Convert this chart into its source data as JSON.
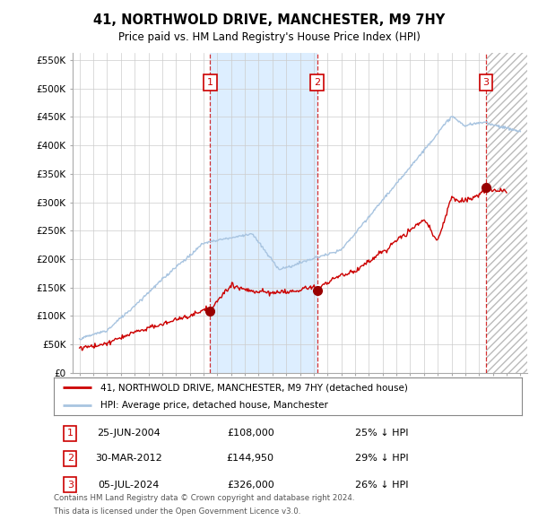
{
  "title": "41, NORTHWOLD DRIVE, MANCHESTER, M9 7HY",
  "subtitle": "Price paid vs. HM Land Registry's House Price Index (HPI)",
  "hpi_color": "#a8c4e0",
  "price_color": "#cc0000",
  "transactions": [
    {
      "num": 1,
      "date_label": "25-JUN-2004",
      "date_x": 2004.48,
      "price": 108000,
      "pct": "25% ↓ HPI"
    },
    {
      "num": 2,
      "date_label": "30-MAR-2012",
      "date_x": 2012.25,
      "price": 144950,
      "pct": "29% ↓ HPI"
    },
    {
      "num": 3,
      "date_label": "05-JUL-2024",
      "date_x": 2024.51,
      "price": 326000,
      "pct": "26% ↓ HPI"
    }
  ],
  "ylim": [
    0,
    562500
  ],
  "xlim": [
    1994.5,
    2027.5
  ],
  "yticks": [
    0,
    50000,
    100000,
    150000,
    200000,
    250000,
    300000,
    350000,
    400000,
    450000,
    500000,
    550000
  ],
  "ytick_labels": [
    "£0",
    "£50K",
    "£100K",
    "£150K",
    "£200K",
    "£250K",
    "£300K",
    "£350K",
    "£400K",
    "£450K",
    "£500K",
    "£550K"
  ],
  "xticks": [
    1995,
    1996,
    1997,
    1998,
    1999,
    2000,
    2001,
    2002,
    2003,
    2004,
    2005,
    2006,
    2007,
    2008,
    2009,
    2010,
    2011,
    2012,
    2013,
    2014,
    2015,
    2016,
    2017,
    2018,
    2019,
    2020,
    2021,
    2022,
    2023,
    2024,
    2025,
    2026,
    2027
  ],
  "legend_line1": "41, NORTHWOLD DRIVE, MANCHESTER, M9 7HY (detached house)",
  "legend_line2": "HPI: Average price, detached house, Manchester",
  "footer1": "Contains HM Land Registry data © Crown copyright and database right 2024.",
  "footer2": "This data is licensed under the Open Government Licence v3.0.",
  "shade_between_tx": true,
  "shade_color": "#ddeeff",
  "hatch_color": "#cccccc",
  "future_x": 2024.51
}
